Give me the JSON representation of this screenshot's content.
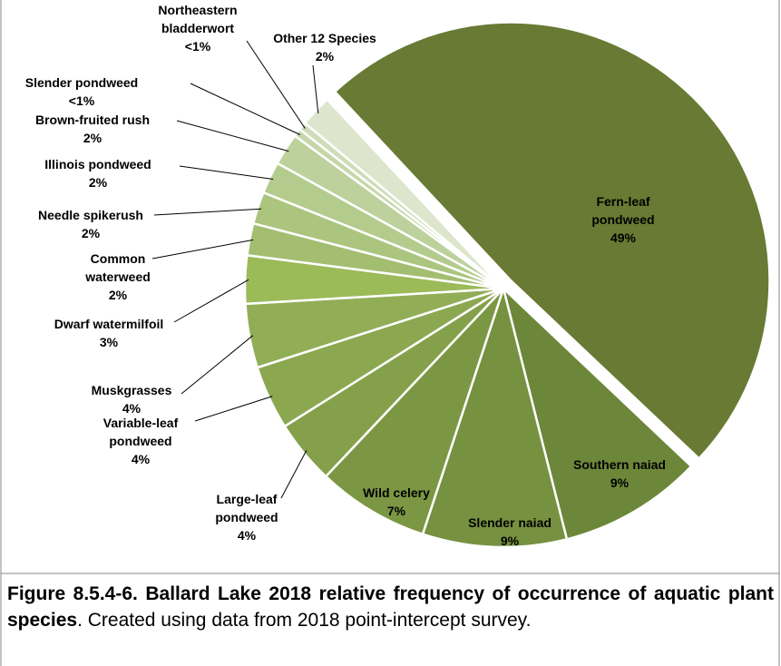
{
  "chart_data": {
    "type": "pie",
    "categories": [
      "Fern-leaf pondweed",
      "Southern naiad",
      "Slender naiad",
      "Wild celery",
      "Large-leaf pondweed",
      "Variable-leaf pondweed",
      "Muskgrasses",
      "Dwarf watermilfoil",
      "Common waterweed",
      "Needle spikerush",
      "Illinois pondweed",
      "Brown-fruited rush",
      "Slender pondweed",
      "Northeastern bladderwort",
      "Other 12 Species"
    ],
    "values": [
      49,
      9,
      9,
      7,
      4,
      4,
      4,
      3,
      2,
      2,
      2,
      2,
      0.5,
      0.5,
      2
    ],
    "value_labels": [
      "49%",
      "9%",
      "9%",
      "7%",
      "4%",
      "4%",
      "4%",
      "3%",
      "2%",
      "2%",
      "2%",
      "2%",
      "<1%",
      "<1%",
      "2%"
    ],
    "colors": [
      "#687a33",
      "#6d873a",
      "#76913f",
      "#7c9743",
      "#84a04a",
      "#8ba851",
      "#91ae57",
      "#9abb58",
      "#a3be70",
      "#abc57f",
      "#b4cb8e",
      "#bdd19c",
      "#c5d7a9",
      "#cedcb7",
      "#dde6cd"
    ]
  },
  "caption": {
    "bold": "Figure 8.5.4-6. Ballard Lake 2018 relative frequency of occurrence of aquatic plant species",
    "text": ".  Created using data from 2018 point-intercept survey."
  }
}
